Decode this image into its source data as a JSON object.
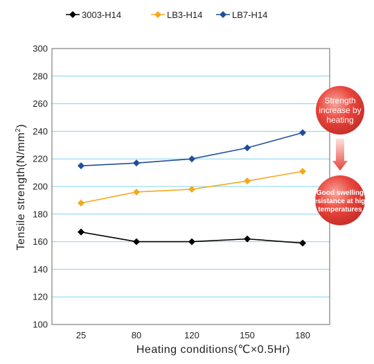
{
  "chart_data": {
    "type": "line",
    "categories": [
      "25",
      "80",
      "120",
      "150",
      "180"
    ],
    "series": [
      {
        "name": "3003-H14",
        "values": [
          167,
          160,
          160,
          162,
          159
        ],
        "color": "#000000",
        "marker": "diamond"
      },
      {
        "name": "LB3-H14",
        "values": [
          188,
          196,
          198,
          204,
          211
        ],
        "color": "#f5a81c",
        "marker": "diamond"
      },
      {
        "name": "LB7-H14",
        "values": [
          215,
          217,
          220,
          228,
          239
        ],
        "color": "#1f4e9c",
        "marker": "diamond"
      }
    ],
    "xlabel": "Heating conditions(℃×0.5Hr)",
    "ylabel_main": "Tensile strength(N/mm",
    "ylabel_sup": "2",
    "ylabel_close": ")",
    "ylim": [
      100,
      300
    ],
    "yticks": [
      "100",
      "120",
      "140",
      "160",
      "180",
      "200",
      "220",
      "240",
      "260",
      "280",
      "300"
    ],
    "grid": true,
    "legend_position": "top"
  },
  "callouts": {
    "top_lines": [
      "Strength",
      "increase by",
      "heating"
    ],
    "bottom_lines": [
      "Good swelling",
      "resistance at high",
      "temperatures"
    ],
    "circle_color": "#e8453c",
    "arrow_color": "#e8453c"
  }
}
